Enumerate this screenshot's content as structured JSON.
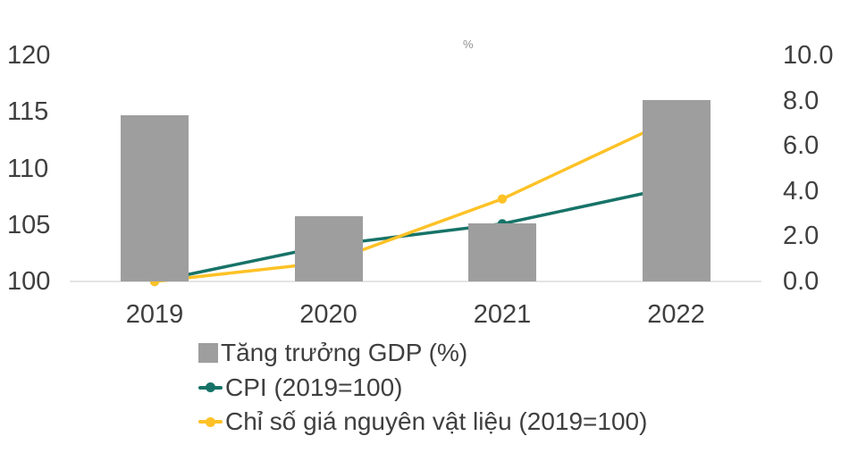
{
  "chart_data": {
    "type": "combo-bar-line",
    "title": "",
    "categories": [
      "2019",
      "2020",
      "2021",
      "2022"
    ],
    "series": [
      {
        "name": "Tăng trưởng GDP (%)",
        "type": "bar",
        "axis": "right",
        "color": "#9e9e9e",
        "values": [
          7.36,
          2.87,
          2.56,
          8.02
        ]
      },
      {
        "name": "CPI (2019=100)",
        "type": "line",
        "axis": "left",
        "color": "#177368",
        "values": [
          100,
          103.2,
          105.1,
          108.4
        ]
      },
      {
        "name": "Chỉ số giá nguyên vật liệu (2019=100)",
        "type": "line",
        "axis": "left",
        "color": "#fec227",
        "values": [
          100,
          101.7,
          107.3,
          114.5
        ]
      }
    ],
    "left_axis": {
      "min": 100,
      "max": 120,
      "ticks": [
        "120",
        "115",
        "110",
        "105",
        "100"
      ]
    },
    "right_axis": {
      "min": 0,
      "max": 10,
      "ticks": [
        "10.0",
        "8.0",
        "6.0",
        "4.0",
        "2.0",
        "0.0"
      ]
    },
    "grid": false,
    "legend_position": "bottom-left",
    "stray_label": "%"
  }
}
